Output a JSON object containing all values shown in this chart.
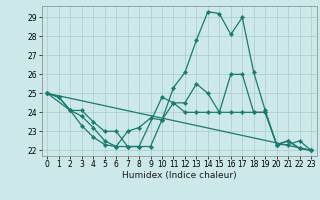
{
  "title": "",
  "xlabel": "Humidex (Indice chaleur)",
  "background_color": "#cce8e8",
  "grid_color": "#aacccc",
  "line_color": "#1a7a6e",
  "xlim": [
    -0.5,
    23.5
  ],
  "ylim": [
    21.7,
    29.6
  ],
  "yticks": [
    22,
    23,
    24,
    25,
    26,
    27,
    28,
    29
  ],
  "xticks": [
    0,
    1,
    2,
    3,
    4,
    5,
    6,
    7,
    8,
    9,
    10,
    11,
    12,
    13,
    14,
    15,
    16,
    17,
    18,
    19,
    20,
    21,
    22,
    23
  ],
  "lines": [
    {
      "x": [
        0,
        1,
        2,
        3,
        4,
        5,
        6,
        7,
        8,
        9,
        10,
        11,
        12,
        13,
        14,
        15,
        16,
        17,
        18,
        19,
        20,
        21,
        22,
        23
      ],
      "y": [
        25.0,
        24.8,
        24.1,
        23.3,
        22.7,
        22.3,
        22.2,
        23.0,
        23.2,
        23.7,
        23.6,
        25.3,
        26.1,
        27.8,
        29.3,
        29.2,
        28.1,
        29.0,
        26.1,
        24.1,
        22.3,
        22.5,
        22.1,
        22.0
      ]
    },
    {
      "x": [
        0,
        23
      ],
      "y": [
        25.0,
        22.0
      ]
    },
    {
      "x": [
        0,
        2,
        3,
        4,
        5,
        6,
        7,
        8,
        10,
        11,
        12,
        13,
        14,
        15,
        16,
        17,
        18,
        19,
        20,
        21,
        22,
        23
      ],
      "y": [
        25.0,
        24.1,
        23.8,
        23.2,
        22.5,
        22.2,
        22.2,
        22.2,
        24.8,
        24.5,
        24.0,
        24.0,
        24.0,
        24.0,
        24.0,
        24.0,
        24.0,
        24.0,
        22.3,
        22.3,
        22.5,
        22.0
      ]
    },
    {
      "x": [
        0,
        1,
        2,
        3,
        4,
        5,
        6,
        7,
        8,
        9,
        10,
        11,
        12,
        13,
        14,
        15,
        16,
        17,
        18,
        19,
        20,
        21,
        22,
        23
      ],
      "y": [
        25.0,
        24.8,
        24.1,
        24.1,
        23.5,
        23.0,
        23.0,
        22.2,
        22.2,
        22.2,
        23.6,
        24.5,
        24.5,
        25.5,
        25.0,
        24.0,
        26.0,
        26.0,
        24.0,
        24.0,
        22.3,
        22.5,
        22.1,
        22.0
      ]
    }
  ],
  "tick_fontsize": 5.5,
  "xlabel_fontsize": 6.5,
  "marker_size": 2.2,
  "linewidth": 0.9
}
